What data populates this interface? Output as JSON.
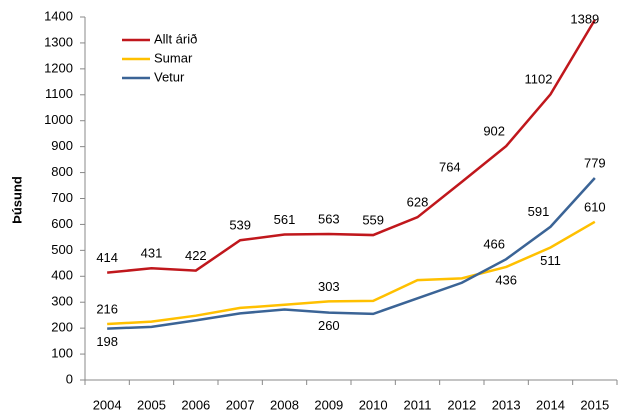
{
  "chart_data": {
    "type": "line",
    "y_label": "Þúsund",
    "categories": [
      "2004",
      "2005",
      "2006",
      "2007",
      "2008",
      "2009",
      "2010",
      "2011",
      "2012",
      "2013",
      "2014",
      "2015"
    ],
    "series": [
      {
        "name": "Allt árið",
        "color": "#c0171c",
        "values": [
          414,
          431,
          422,
          539,
          561,
          563,
          559,
          628,
          764,
          902,
          1102,
          1389
        ],
        "value_labels": [
          "414",
          "431",
          "422",
          "539",
          "561",
          "563",
          "559",
          "628",
          "764",
          "902",
          "1102",
          "1389"
        ]
      },
      {
        "name": "Sumar",
        "color": "#ffc000",
        "values": [
          216,
          225,
          248,
          278,
          290,
          303,
          305,
          385,
          392,
          436,
          511,
          610
        ],
        "value_labels": [
          "216",
          null,
          null,
          null,
          null,
          "303",
          null,
          null,
          null,
          "436",
          "511",
          "610"
        ]
      },
      {
        "name": "Vetur",
        "color": "#3b6496",
        "values": [
          198,
          205,
          230,
          257,
          272,
          260,
          255,
          315,
          375,
          466,
          591,
          779
        ],
        "value_labels": [
          "198",
          null,
          null,
          null,
          null,
          "260",
          null,
          null,
          null,
          "466",
          "591",
          "779"
        ]
      }
    ],
    "ylim": [
      0,
      1400
    ],
    "yticks": [
      0,
      100,
      200,
      300,
      400,
      500,
      600,
      700,
      800,
      900,
      1000,
      1100,
      1200,
      1300,
      1400
    ],
    "grid": false,
    "legend": "top-left"
  }
}
